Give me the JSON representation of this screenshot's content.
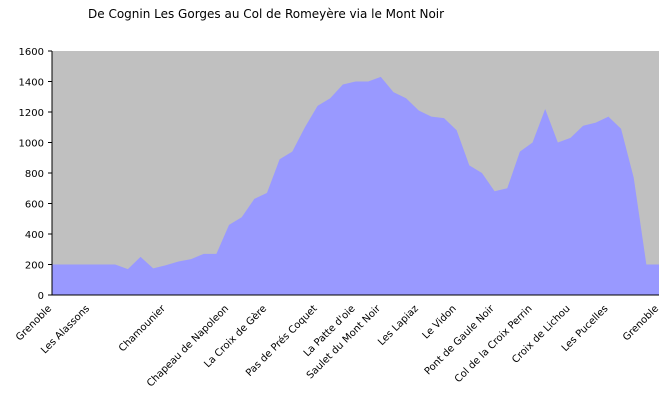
{
  "chart_data": {
    "type": "area",
    "title": "De Cognin Les Gorges au Col de Romeyère via le Mont Noir",
    "categories": [
      "Grenoble",
      null,
      null,
      "Les Alassons",
      null,
      null,
      null,
      null,
      null,
      "Chamounier",
      null,
      null,
      null,
      null,
      "Chapeau de Napoleon",
      null,
      null,
      "La Croix de Gère",
      null,
      null,
      null,
      "Pas de Prés Coquet",
      null,
      null,
      "La Patte d'oie",
      null,
      "Saulet du Mont Noir",
      null,
      null,
      "Les Lapiaz",
      null,
      null,
      "Le Vidon",
      null,
      null,
      "Pont de Gaule Noir",
      null,
      null,
      "Col de la Croix Perrin",
      null,
      null,
      "Croix de Lichou",
      null,
      null,
      "Les Pucelles",
      null,
      null,
      null,
      "Grenoble"
    ],
    "values": [
      200,
      200,
      200,
      200,
      200,
      200,
      170,
      250,
      175,
      195,
      220,
      235,
      270,
      270,
      460,
      510,
      630,
      670,
      890,
      940,
      1100,
      1240,
      1290,
      1380,
      1400,
      1400,
      1430,
      1330,
      1290,
      1210,
      1170,
      1160,
      1080,
      850,
      800,
      680,
      700,
      940,
      1000,
      1220,
      1000,
      1030,
      1110,
      1130,
      1170,
      1090,
      770,
      200,
      200
    ],
    "color": "#9999ff",
    "plot_background": "#c0c0c0",
    "ylim": [
      0,
      1600
    ],
    "yticks": [
      0,
      200,
      400,
      600,
      800,
      1000,
      1200,
      1400,
      1600
    ]
  }
}
